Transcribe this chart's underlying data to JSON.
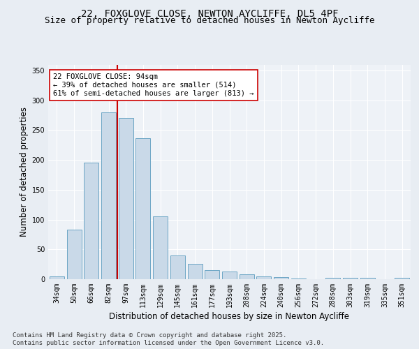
{
  "title_line1": "22, FOXGLOVE CLOSE, NEWTON AYCLIFFE, DL5 4PF",
  "title_line2": "Size of property relative to detached houses in Newton Aycliffe",
  "xlabel": "Distribution of detached houses by size in Newton Aycliffe",
  "ylabel": "Number of detached properties",
  "categories": [
    "34sqm",
    "50sqm",
    "66sqm",
    "82sqm",
    "97sqm",
    "113sqm",
    "129sqm",
    "145sqm",
    "161sqm",
    "177sqm",
    "193sqm",
    "208sqm",
    "224sqm",
    "240sqm",
    "256sqm",
    "272sqm",
    "288sqm",
    "303sqm",
    "319sqm",
    "335sqm",
    "351sqm"
  ],
  "values": [
    5,
    83,
    195,
    280,
    270,
    237,
    105,
    40,
    26,
    15,
    13,
    8,
    5,
    3,
    1,
    0,
    2,
    2,
    2,
    0,
    2
  ],
  "bar_color": "#c9d9e8",
  "bar_edge_color": "#5a9cbf",
  "vline_color": "#cc0000",
  "vline_index": 3.5,
  "annotation_text": "22 FOXGLOVE CLOSE: 94sqm\n← 39% of detached houses are smaller (514)\n61% of semi-detached houses are larger (813) →",
  "annotation_box_color": "#ffffff",
  "annotation_box_edge": "#cc0000",
  "bg_color": "#e8edf3",
  "plot_bg_color": "#eef2f7",
  "footer_line1": "Contains HM Land Registry data © Crown copyright and database right 2025.",
  "footer_line2": "Contains public sector information licensed under the Open Government Licence v3.0.",
  "ylim": [
    0,
    360
  ],
  "yticks": [
    0,
    50,
    100,
    150,
    200,
    250,
    300,
    350
  ],
  "title_fontsize": 10,
  "subtitle_fontsize": 9,
  "axis_label_fontsize": 8.5,
  "tick_fontsize": 7,
  "annotation_fontsize": 7.5,
  "footer_fontsize": 6.5
}
